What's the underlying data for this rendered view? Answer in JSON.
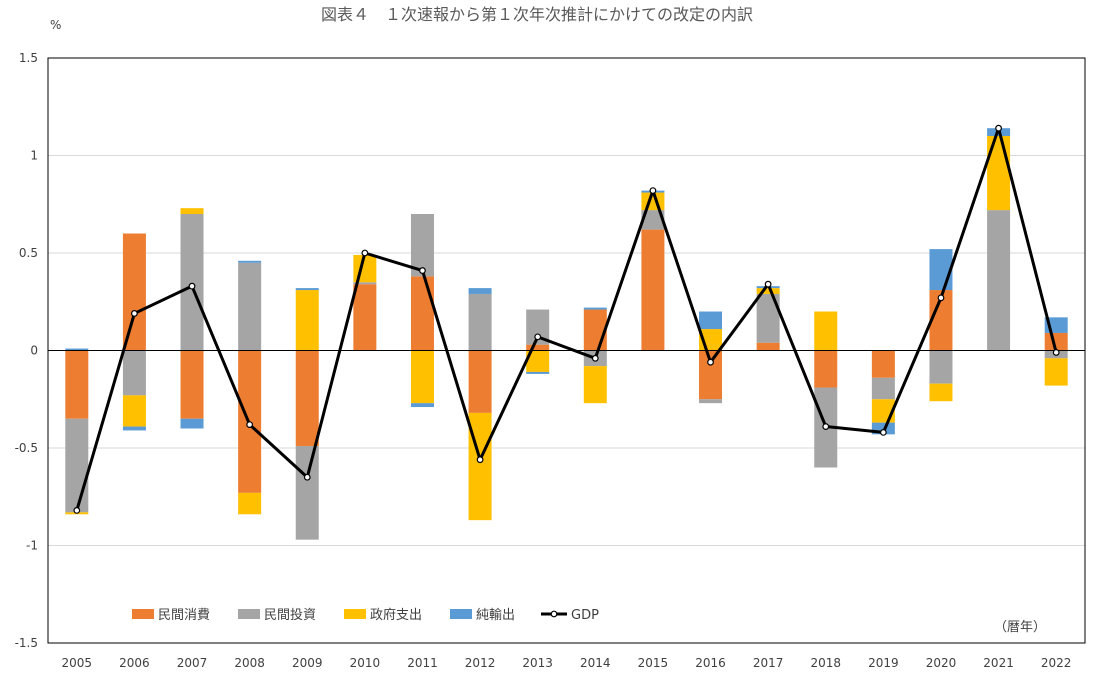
{
  "chart_data": {
    "type": "bar",
    "title": "図表４　１次速報から第１次年次推計にかけての改定の内訳",
    "ylabel": "%",
    "xlabel_note": "（暦年）",
    "ylim": [
      -1.5,
      1.5
    ],
    "yticks": [
      "1.5",
      "1",
      "0.5",
      "0",
      "-0.5",
      "-1",
      "-1.5"
    ],
    "categories": [
      "2005",
      "2006",
      "2007",
      "2008",
      "2009",
      "2010",
      "2011",
      "2012",
      "2013",
      "2014",
      "2015",
      "2016",
      "2017",
      "2018",
      "2019",
      "2020",
      "2021",
      "2022"
    ],
    "stacked": true,
    "series": [
      {
        "name": "民間消費",
        "color": "#ED7D31",
        "values": [
          -0.35,
          0.6,
          -0.35,
          -0.73,
          -0.49,
          0.34,
          0.38,
          -0.32,
          0.03,
          0.21,
          0.62,
          -0.25,
          0.04,
          -0.19,
          -0.14,
          0.31,
          0.0,
          0.09
        ]
      },
      {
        "name": "民間投資",
        "color": "#A5A5A5",
        "values": [
          -0.48,
          -0.23,
          0.7,
          0.45,
          -0.48,
          0.01,
          0.32,
          0.29,
          0.18,
          -0.08,
          0.1,
          -0.02,
          0.25,
          -0.41,
          -0.11,
          -0.17,
          0.72,
          -0.04
        ]
      },
      {
        "name": "政府支出",
        "color": "#FFC000",
        "values": [
          -0.01,
          -0.16,
          0.03,
          -0.11,
          0.31,
          0.14,
          -0.27,
          -0.55,
          -0.11,
          -0.19,
          0.09,
          0.11,
          0.03,
          0.2,
          -0.12,
          -0.09,
          0.38,
          -0.14
        ]
      },
      {
        "name": "純輸出",
        "color": "#5B9BD5",
        "values": [
          0.01,
          -0.02,
          -0.05,
          0.01,
          0.01,
          0.0,
          -0.02,
          0.03,
          -0.01,
          0.01,
          0.01,
          0.09,
          0.01,
          0.0,
          -0.06,
          0.21,
          0.04,
          0.08
        ]
      }
    ],
    "line": {
      "name": "GDP",
      "color": "#000000",
      "values": [
        -0.82,
        0.19,
        0.33,
        -0.38,
        -0.65,
        0.5,
        0.41,
        -0.56,
        0.07,
        -0.04,
        0.82,
        -0.06,
        0.34,
        -0.39,
        -0.42,
        0.27,
        1.14,
        -0.01
      ]
    },
    "grid": true,
    "legend_position": "bottom-left"
  }
}
